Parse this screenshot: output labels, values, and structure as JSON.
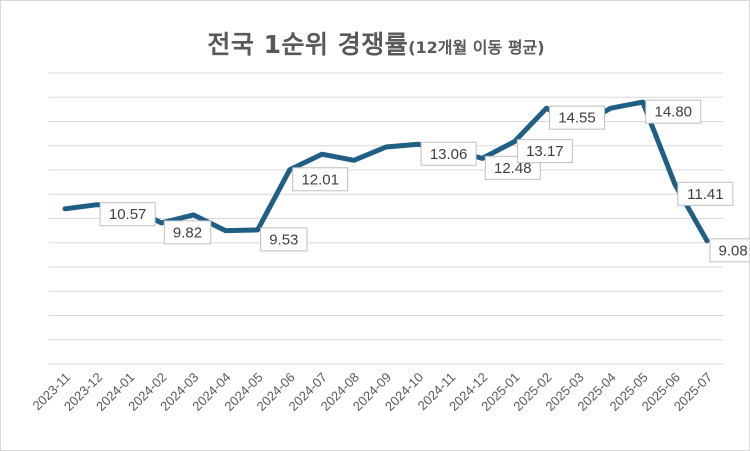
{
  "chart_data": {
    "type": "line",
    "title": "전국 1순위 경쟁률",
    "subtitle": "(12개월 이동 평균)",
    "categories": [
      "2023-11",
      "2023-12",
      "2024-01",
      "2024-02",
      "2024-03",
      "2024-04",
      "2024-05",
      "2024-06",
      "2024-07",
      "2024-08",
      "2024-09",
      "2024-10",
      "2024-11",
      "2024-12",
      "2025-01",
      "2025-02",
      "2025-03",
      "2025-04",
      "2025-05",
      "2025-06",
      "2025-07"
    ],
    "values": [
      10.4,
      10.57,
      10.5,
      9.82,
      10.15,
      9.5,
      9.53,
      12.01,
      12.65,
      12.4,
      12.95,
      13.06,
      12.85,
      12.48,
      13.17,
      14.55,
      13.8,
      14.55,
      14.8,
      11.41,
      9.08
    ],
    "data_labels": [
      {
        "index": 1,
        "text": "10.57"
      },
      {
        "index": 3,
        "text": "9.82"
      },
      {
        "index": 6,
        "text": "9.53"
      },
      {
        "index": 7,
        "text": "12.01"
      },
      {
        "index": 11,
        "text": "13.06"
      },
      {
        "index": 13,
        "text": "12.48"
      },
      {
        "index": 14,
        "text": "13.17"
      },
      {
        "index": 15,
        "text": "14.55"
      },
      {
        "index": 18,
        "text": "14.80"
      },
      {
        "index": 19,
        "text": "11.41"
      },
      {
        "index": 20,
        "text": "9.08"
      }
    ],
    "ylim": [
      4,
      16
    ],
    "y_gridline_step": 1,
    "y_axis_labels_visible": false,
    "grid": true,
    "line_color": "#1f5f86",
    "legend": "none"
  }
}
